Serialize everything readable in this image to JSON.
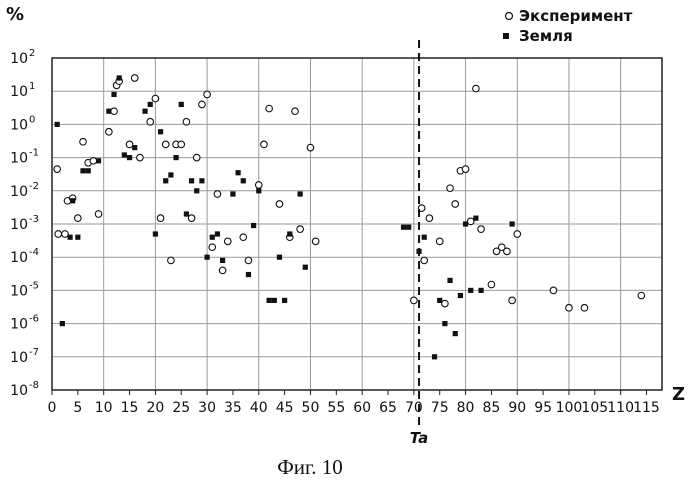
{
  "chart_data": {
    "type": "scatter",
    "ylabel": "%",
    "xlabel": "Z",
    "caption": "Фиг. 10",
    "xlim": [
      0,
      118
    ],
    "xticks": [
      0,
      5,
      10,
      15,
      20,
      25,
      30,
      35,
      40,
      45,
      50,
      55,
      60,
      65,
      70,
      75,
      80,
      85,
      90,
      95,
      100,
      105,
      110,
      115
    ],
    "y_log": true,
    "yexp_range": [
      -8,
      2
    ],
    "ytick_base": "10",
    "ytick_exps": [
      "-8",
      "-7",
      "-6",
      "-5",
      "-4",
      "-3",
      "-2",
      "-1",
      "0",
      "1",
      "2"
    ],
    "grid": true,
    "legend_position": "top-right",
    "marker_line": {
      "x": 71,
      "label": "Ta",
      "style": "dashed"
    },
    "series": [
      {
        "name": "Эксперимент",
        "marker": "open-circle",
        "points": [
          [
            1,
            0.045
          ],
          [
            1.2,
            0.0005
          ],
          [
            2.5,
            0.0005
          ],
          [
            3,
            0.005
          ],
          [
            4,
            0.006
          ],
          [
            5,
            0.0015
          ],
          [
            6,
            0.3
          ],
          [
            7,
            0.07
          ],
          [
            8,
            0.08
          ],
          [
            9,
            0.002
          ],
          [
            11,
            0.6
          ],
          [
            12,
            2.5
          ],
          [
            12.5,
            15
          ],
          [
            13,
            20
          ],
          [
            15,
            0.25
          ],
          [
            16,
            25
          ],
          [
            17,
            0.1
          ],
          [
            19,
            1.2
          ],
          [
            20,
            6
          ],
          [
            21,
            0.0015
          ],
          [
            22,
            0.25
          ],
          [
            23,
            8e-05
          ],
          [
            24,
            0.25
          ],
          [
            25,
            0.25
          ],
          [
            26,
            1.2
          ],
          [
            27,
            0.0015
          ],
          [
            28,
            0.1
          ],
          [
            29,
            4
          ],
          [
            30,
            8
          ],
          [
            31,
            0.0002
          ],
          [
            32,
            0.008
          ],
          [
            33,
            4e-05
          ],
          [
            34,
            0.0003
          ],
          [
            37,
            0.0004
          ],
          [
            38,
            8e-05
          ],
          [
            40,
            0.015
          ],
          [
            41,
            0.25
          ],
          [
            42,
            3
          ],
          [
            44,
            0.004
          ],
          [
            46,
            0.0004
          ],
          [
            47,
            2.5
          ],
          [
            48,
            0.0007
          ],
          [
            50,
            0.2
          ],
          [
            51,
            0.0003
          ],
          [
            70,
            5e-06
          ],
          [
            71.5,
            0.003
          ],
          [
            72,
            8e-05
          ],
          [
            73,
            0.0015
          ],
          [
            75,
            0.0003
          ],
          [
            76,
            4e-06
          ],
          [
            77,
            0.012
          ],
          [
            78,
            0.004
          ],
          [
            79,
            0.04
          ],
          [
            80,
            0.045
          ],
          [
            81,
            0.0012
          ],
          [
            82,
            12
          ],
          [
            83,
            0.0007
          ],
          [
            85,
            1.5e-05
          ],
          [
            86,
            0.00015
          ],
          [
            87,
            0.0002
          ],
          [
            88,
            0.00015
          ],
          [
            89,
            5e-06
          ],
          [
            90,
            0.0005
          ],
          [
            97,
            1e-05
          ],
          [
            100,
            3e-06
          ],
          [
            103,
            3e-06
          ],
          [
            114,
            7e-06
          ]
        ]
      },
      {
        "name": "Земля",
        "marker": "filled-square",
        "points": [
          [
            1,
            1
          ],
          [
            2,
            1e-06
          ],
          [
            3.5,
            0.0004
          ],
          [
            4,
            0.005
          ],
          [
            5,
            0.0004
          ],
          [
            6,
            0.04
          ],
          [
            7,
            0.04
          ],
          [
            9,
            0.08
          ],
          [
            11,
            2.5
          ],
          [
            12,
            8
          ],
          [
            13,
            25
          ],
          [
            14,
            0.12
          ],
          [
            15,
            0.1
          ],
          [
            16,
            0.2
          ],
          [
            18,
            2.5
          ],
          [
            19,
            4
          ],
          [
            20,
            0.0005
          ],
          [
            21,
            0.6
          ],
          [
            22,
            0.02
          ],
          [
            23,
            0.03
          ],
          [
            24,
            0.1
          ],
          [
            25,
            4
          ],
          [
            26,
            0.002
          ],
          [
            27,
            0.02
          ],
          [
            28,
            0.01
          ],
          [
            29,
            0.02
          ],
          [
            30,
            0.0001
          ],
          [
            31,
            0.0004
          ],
          [
            32,
            0.0005
          ],
          [
            33,
            8e-05
          ],
          [
            35,
            0.008
          ],
          [
            36,
            0.035
          ],
          [
            37,
            0.02
          ],
          [
            38,
            3e-05
          ],
          [
            39,
            0.0009
          ],
          [
            40,
            0.01
          ],
          [
            42,
            5e-06
          ],
          [
            43,
            5e-06
          ],
          [
            44,
            0.0001
          ],
          [
            45,
            5e-06
          ],
          [
            46,
            0.0005
          ],
          [
            48,
            0.008
          ],
          [
            49,
            5e-05
          ],
          [
            68,
            0.0008
          ],
          [
            69,
            0.0008
          ],
          [
            71,
            0.00015
          ],
          [
            72,
            0.0004
          ],
          [
            74,
            1e-07
          ],
          [
            75,
            5e-06
          ],
          [
            76,
            1e-06
          ],
          [
            77,
            2e-05
          ],
          [
            78,
            5e-07
          ],
          [
            79,
            7e-06
          ],
          [
            80,
            0.001
          ],
          [
            81,
            1e-05
          ],
          [
            82,
            0.0015
          ],
          [
            83,
            1e-05
          ],
          [
            89,
            0.001
          ]
        ]
      }
    ]
  }
}
